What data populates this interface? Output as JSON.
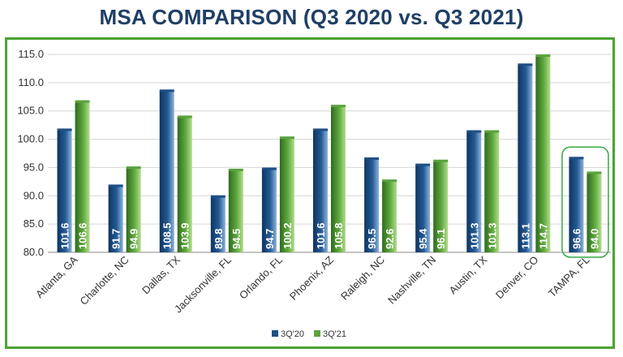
{
  "title": "MSA COMPARISON (Q3 2020 vs. Q3 2021)",
  "colors": {
    "frame": "#4ca331",
    "title": "#1f3f66",
    "series_2020": "#1e4f85",
    "series_2021": "#5aa33d",
    "highlight": "#33aa44"
  },
  "chart_data": {
    "type": "bar",
    "title": "MSA COMPARISON (Q3 2020 vs. Q3 2021)",
    "xlabel": "",
    "ylabel": "",
    "categories": [
      "Atlanta, GA",
      "Charlotte, NC",
      "Dallas, TX",
      "Jacksonville, FL",
      "Orlando, FL",
      "Phoenix, AZ",
      "Raleigh, NC",
      "Nashville, TN",
      "Austin, TX",
      "Denver, CO",
      "TAMPA, FL"
    ],
    "series": [
      {
        "name": "3Q'20",
        "values": [
          101.6,
          91.7,
          108.5,
          89.8,
          94.7,
          101.6,
          96.5,
          95.4,
          101.3,
          113.1,
          96.6
        ]
      },
      {
        "name": "3Q'21",
        "values": [
          106.6,
          94.9,
          103.9,
          94.5,
          100.2,
          105.8,
          92.6,
          96.1,
          101.3,
          114.7,
          94.0
        ]
      }
    ],
    "ylim": [
      80,
      115
    ],
    "yticks": [
      "80.0",
      "85.0",
      "90.0",
      "95.0",
      "100.0",
      "105.0",
      "110.0",
      "115.0"
    ],
    "grid": true,
    "legend": "bottom-center",
    "highlighted_category": "TAMPA, FL"
  }
}
